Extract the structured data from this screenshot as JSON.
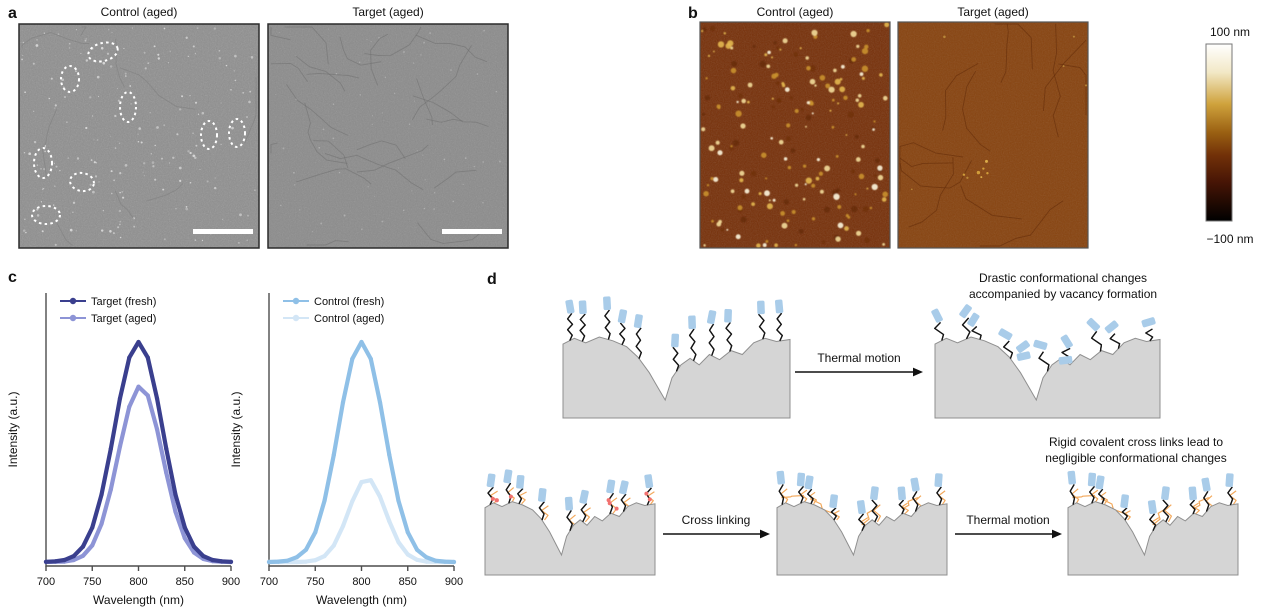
{
  "panel_a": {
    "label": "a",
    "images": [
      {
        "title": "Control (aged)"
      },
      {
        "title": "Target (aged)"
      }
    ]
  },
  "panel_b": {
    "label": "b",
    "images": [
      {
        "title": "Control (aged)"
      },
      {
        "title": "Target (aged)"
      }
    ],
    "colorbar": {
      "top": "100 nm",
      "bottom": "−100 nm"
    }
  },
  "panel_c": {
    "label": "c"
  },
  "chart_data": [
    {
      "type": "line",
      "title": "",
      "xlabel": "Wavelength (nm)",
      "ylabel": "Intensity (a.u.)",
      "xlim": [
        700,
        900
      ],
      "ylim": [
        0,
        1.1
      ],
      "x_ticks": [
        700,
        750,
        800,
        850,
        900
      ],
      "grid": false,
      "legend_position": "top-left",
      "x": [
        700,
        710,
        720,
        730,
        740,
        750,
        760,
        770,
        780,
        790,
        800,
        810,
        820,
        830,
        840,
        850,
        860,
        870,
        880,
        890,
        900
      ],
      "series": [
        {
          "name": "Target (fresh)",
          "color": "#3a3f8e",
          "values": [
            0.001,
            0.003,
            0.009,
            0.027,
            0.07,
            0.157,
            0.306,
            0.514,
            0.744,
            0.929,
            1.0,
            0.929,
            0.744,
            0.514,
            0.306,
            0.157,
            0.07,
            0.027,
            0.009,
            0.003,
            0.001
          ]
        },
        {
          "name": "Target (aged)",
          "color": "#8d94d6",
          "values": [
            0.0,
            0.001,
            0.002,
            0.009,
            0.028,
            0.076,
            0.173,
            0.329,
            0.526,
            0.706,
            0.797,
            0.757,
            0.604,
            0.405,
            0.228,
            0.108,
            0.043,
            0.014,
            0.004,
            0.001,
            0.0
          ]
        }
      ]
    },
    {
      "type": "line",
      "title": "",
      "xlabel": "Wavelength (nm)",
      "ylabel": "Intensity (a.u.)",
      "xlim": [
        700,
        900
      ],
      "ylim": [
        0,
        1.1
      ],
      "x_ticks": [
        700,
        750,
        800,
        850,
        900
      ],
      "grid": false,
      "legend_position": "top-left",
      "x": [
        700,
        710,
        720,
        730,
        740,
        750,
        760,
        770,
        780,
        790,
        800,
        810,
        820,
        830,
        840,
        850,
        860,
        870,
        880,
        890,
        900
      ],
      "series": [
        {
          "name": "Control (fresh)",
          "color": "#8fc0e7",
          "values": [
            0.0,
            0.002,
            0.006,
            0.022,
            0.056,
            0.135,
            0.278,
            0.487,
            0.726,
            0.923,
            1.0,
            0.923,
            0.726,
            0.487,
            0.278,
            0.135,
            0.056,
            0.022,
            0.006,
            0.002,
            0.0
          ]
        },
        {
          "name": "Control (aged)",
          "color": "#d3e6f6",
          "values": [
            0.0,
            0.0,
            0.0,
            0.0,
            0.002,
            0.008,
            0.027,
            0.075,
            0.163,
            0.276,
            0.363,
            0.372,
            0.297,
            0.185,
            0.09,
            0.034,
            0.01,
            0.002,
            0.001,
            0.0,
            0.0
          ]
        }
      ]
    }
  ],
  "panel_d": {
    "label": "d",
    "captions": {
      "top": [
        "Drastic conformational changes",
        "accompanied by vacancy formation"
      ],
      "bottom": [
        "Rigid covalent cross links lead to",
        "negligible conformational changes"
      ]
    },
    "arrows": [
      {
        "label": "Thermal motion"
      },
      {
        "label": "Cross linking"
      },
      {
        "label": "Thermal motion"
      }
    ]
  },
  "colors": {
    "sem_base": "#8e8e8e",
    "afm_control_base": "#762f08",
    "afm_target_base": "#87430f",
    "ligand_cap": "#a9cce9",
    "crosslink_orange": "#f3a95c",
    "reactive_site_red": "#f2716f",
    "surface_gray": "#d5d5d5"
  }
}
